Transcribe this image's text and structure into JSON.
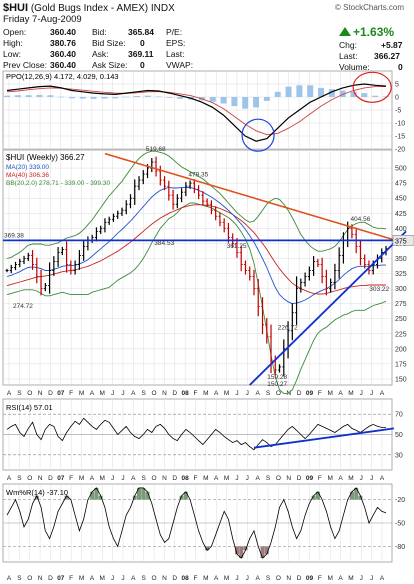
{
  "header": {
    "symbol": "$HUI",
    "name": "(Gold Bugs Index - AMEX) INDX",
    "date": "Friday  7-Aug-2009",
    "watermark": "© StockCharts.com",
    "quotes": [
      {
        "label": "Open:",
        "value": "360.40"
      },
      {
        "label": "High:",
        "value": "380.76"
      },
      {
        "label": "Low:",
        "value": "360.40"
      },
      {
        "label": "Prev Close:",
        "value": "360.40"
      },
      {
        "label": "Bid:",
        "value": "365.84"
      },
      {
        "label": "Bid Size:",
        "value": "0"
      },
      {
        "label": "Ask:",
        "value": "369.11"
      },
      {
        "label": "Ask Size:",
        "value": "0"
      },
      {
        "label": "P/E:",
        "value": ""
      },
      {
        "label": "EPS:",
        "value": ""
      },
      {
        "label": "Last:",
        "value": ""
      },
      {
        "label": "VWAP:",
        "value": ""
      },
      {
        "label": "Chg:",
        "value": "+5.87"
      },
      {
        "label": "Last:",
        "value": "366.27"
      },
      {
        "label": "Volume:",
        "value": "0"
      }
    ],
    "pct_change": "+1.63%"
  },
  "colors": {
    "price_bar": "#000000",
    "ma20": "#2255cc",
    "ma40": "#cc2222",
    "bb": "#3a8a3a",
    "trend_orange": "#e0501a",
    "trend_blue": "#1030d0",
    "highlight_circle_red": "#e02020",
    "highlight_circle_blue": "#2040e0",
    "ppo_hist": "#9fc4ea",
    "willr_fill": "#7a9a7a",
    "willr_fill_low": "#9a7a7a",
    "grid": "#dcdcdc"
  },
  "chart_data": [
    {
      "panel": "PPO",
      "type": "line",
      "legend": [
        "PPO(12,26,9) 4.172, 4.029, 0.143"
      ],
      "ylim": [
        -20,
        10
      ],
      "yticks": [
        "5",
        "0",
        "-5",
        "-10",
        "-15",
        "-20"
      ],
      "ppo": [
        2.5,
        3,
        3.5,
        4,
        4.2,
        3.5,
        2.5,
        2,
        1.5,
        1.2,
        1,
        1.5,
        2,
        2.5,
        2.3,
        1.5,
        0.5,
        -0.5,
        -2,
        -4,
        -7,
        -11,
        -15,
        -17,
        -16,
        -12,
        -8,
        -5,
        -2,
        0,
        2,
        3.5,
        4.5,
        5,
        4.5,
        4.2
      ],
      "signal": [
        2,
        2.3,
        2.8,
        3.2,
        3.5,
        3.4,
        3,
        2.6,
        2.2,
        1.8,
        1.5,
        1.4,
        1.6,
        2,
        2.1,
        1.8,
        1.2,
        0.5,
        -0.7,
        -2.2,
        -4.5,
        -7.5,
        -10.5,
        -13,
        -14.5,
        -14,
        -12,
        -9.5,
        -6.5,
        -3.5,
        -1,
        1,
        2.5,
        3.5,
        4,
        4
      ],
      "annotations": [
        "red circle around recent PPO cross",
        "blue circle around PPO low"
      ]
    },
    {
      "panel": "price",
      "type": "ohlc",
      "title": "$HUI (Weekly) 366.27",
      "legend": [
        "MA(20) 339.00",
        "MA(40) 306.36",
        "BB(20,2.0) 278.71 - 339.00 - 399.30"
      ],
      "ylim": [
        140,
        530
      ],
      "yticks": [
        "500",
        "475",
        "450",
        "425",
        "400",
        "375",
        "350",
        "325",
        "300",
        "275",
        "250",
        "225",
        "200",
        "175",
        "150"
      ],
      "xticks": [
        "A",
        "S",
        "O",
        "N",
        "D",
        "07",
        "F",
        "M",
        "A",
        "M",
        "J",
        "J",
        "A",
        "S",
        "O",
        "N",
        "D",
        "08",
        "F",
        "M",
        "A",
        "M",
        "J",
        "J",
        "A",
        "S",
        "O",
        "N",
        "D",
        "09",
        "F",
        "M",
        "A",
        "M",
        "J",
        "J",
        "A"
      ],
      "labels": [
        "519.68",
        "479.35",
        "404.56",
        "369.38",
        "384.53",
        "361.25",
        "274.72",
        "226.72",
        "159.28",
        "150.27",
        "303.22",
        "375"
      ],
      "close": [
        330,
        335,
        340,
        345,
        350,
        355,
        340,
        320,
        300,
        305,
        330,
        345,
        360,
        365,
        340,
        330,
        340,
        355,
        370,
        380,
        385,
        395,
        400,
        410,
        415,
        420,
        425,
        430,
        440,
        450,
        470,
        480,
        490,
        500,
        510,
        495,
        480,
        470,
        455,
        440,
        450,
        460,
        470,
        475,
        465,
        455,
        445,
        440,
        430,
        420,
        410,
        400,
        385,
        375,
        360,
        340,
        330,
        320,
        300,
        270,
        240,
        220,
        180,
        165,
        170,
        200,
        230,
        260,
        300,
        310,
        320,
        330,
        345,
        340,
        320,
        300,
        310,
        330,
        355,
        380,
        400,
        390,
        370,
        350,
        340,
        330,
        340,
        350,
        360,
        366
      ],
      "ma20": [
        320,
        322,
        325,
        328,
        332,
        335,
        336,
        335,
        333,
        330,
        330,
        332,
        334,
        337,
        338,
        338,
        339,
        341,
        344,
        348,
        354,
        360,
        366,
        372,
        378,
        385,
        392,
        398,
        405,
        412,
        420,
        428,
        436,
        444,
        452,
        458,
        463,
        466,
        468,
        467,
        467,
        468,
        468,
        468,
        466,
        463,
        460,
        456,
        452,
        447,
        442,
        436,
        430,
        423,
        415,
        407,
        398,
        388,
        377,
        364,
        350,
        335,
        318,
        302,
        290,
        283,
        278,
        275,
        276,
        278,
        281,
        285,
        290,
        294,
        297,
        300,
        304,
        309,
        315,
        322,
        328,
        333,
        336,
        337,
        337,
        337,
        338,
        338,
        339,
        339
      ],
      "ma40": [
        305,
        307,
        309,
        311,
        313,
        315,
        317,
        319,
        320,
        321,
        322,
        324,
        326,
        328,
        329,
        330,
        331,
        333,
        335,
        337,
        340,
        343,
        346,
        350,
        354,
        358,
        362,
        367,
        372,
        377,
        383,
        389,
        395,
        401,
        407,
        412,
        417,
        421,
        425,
        428,
        431,
        434,
        436,
        438,
        439,
        439,
        439,
        438,
        437,
        435,
        433,
        430,
        427,
        423,
        418,
        413,
        407,
        400,
        393,
        384,
        375,
        365,
        354,
        343,
        333,
        324,
        316,
        309,
        304,
        300,
        297,
        294,
        292,
        291,
        291,
        292,
        294,
        296,
        298,
        300,
        302,
        303,
        304,
        305,
        305,
        306,
        306,
        306,
        306,
        306
      ],
      "bb_upper": [
        350,
        352,
        356,
        360,
        366,
        372,
        374,
        374,
        374,
        372,
        372,
        374,
        376,
        380,
        384,
        386,
        388,
        392,
        398,
        406,
        414,
        424,
        434,
        444,
        454,
        462,
        470,
        478,
        488,
        498,
        508,
        516,
        522,
        526,
        528,
        528,
        526,
        524,
        520,
        514,
        508,
        502,
        498,
        494,
        490,
        486,
        482,
        476,
        470,
        464,
        458,
        450,
        442,
        434,
        426,
        420,
        414,
        410,
        412,
        420,
        430,
        440,
        446,
        450,
        448,
        440,
        430,
        418,
        404,
        390,
        380,
        372,
        366,
        362,
        362,
        364,
        366,
        370,
        378,
        388,
        398,
        404,
        408,
        410,
        410,
        406,
        402,
        400,
        400,
        399
      ],
      "bb_lower": [
        290,
        292,
        294,
        296,
        298,
        298,
        298,
        296,
        292,
        288,
        288,
        290,
        292,
        294,
        292,
        290,
        290,
        290,
        290,
        290,
        294,
        296,
        298,
        300,
        302,
        308,
        314,
        318,
        322,
        326,
        332,
        340,
        350,
        362,
        376,
        388,
        400,
        408,
        416,
        420,
        426,
        434,
        438,
        442,
        442,
        440,
        438,
        436,
        434,
        430,
        426,
        422,
        418,
        412,
        404,
        394,
        382,
        366,
        342,
        308,
        270,
        230,
        190,
        154,
        132,
        126,
        126,
        132,
        148,
        166,
        182,
        198,
        214,
        226,
        232,
        236,
        242,
        248,
        252,
        256,
        258,
        262,
        264,
        264,
        264,
        268,
        272,
        274,
        276,
        279
      ],
      "trendlines": [
        "orange falling resistance from 519.68 peak",
        "blue horizontal line at 369.38",
        "blue rising support from 150.27 low"
      ]
    },
    {
      "panel": "RSI",
      "type": "line",
      "legend": [
        "RSI(14) 57.01"
      ],
      "ylim": [
        15,
        85
      ],
      "yticks": [
        "70",
        "50",
        "30"
      ],
      "values": [
        55,
        58,
        60,
        52,
        48,
        56,
        62,
        50,
        45,
        55,
        60,
        58,
        48,
        44,
        52,
        58,
        63,
        60,
        66,
        62,
        58,
        55,
        60,
        64,
        62,
        56,
        50,
        54,
        58,
        52,
        48,
        46,
        50,
        55,
        52,
        58,
        60,
        56,
        50,
        46,
        44,
        50,
        55,
        52,
        48,
        44,
        40,
        45,
        50,
        55,
        52,
        48,
        45,
        42,
        44,
        40,
        42,
        38,
        35,
        40,
        45,
        42,
        38,
        40,
        45,
        50,
        55,
        58,
        54,
        50,
        46,
        50,
        55,
        60,
        58,
        56,
        54,
        52,
        55,
        58,
        60,
        56,
        54,
        52,
        55,
        58,
        60,
        58,
        57,
        57
      ],
      "annotations": [
        "blue rising trendline under RSI lows"
      ]
    },
    {
      "panel": "Wm%R",
      "type": "line",
      "legend": [
        "Wm%R(14) -37.10"
      ],
      "ylim": [
        -100,
        0
      ],
      "yticks": [
        "-20",
        "-50",
        "-80"
      ],
      "values": [
        -40,
        -30,
        -20,
        -35,
        -55,
        -45,
        -25,
        -15,
        -30,
        -60,
        -70,
        -55,
        -35,
        -25,
        -15,
        -20,
        -40,
        -60,
        -45,
        -20,
        -10,
        -5,
        -15,
        -30,
        -55,
        -70,
        -80,
        -60,
        -40,
        -30,
        -15,
        -5,
        -5,
        -10,
        -25,
        -45,
        -65,
        -75,
        -70,
        -50,
        -30,
        -15,
        -10,
        -20,
        -40,
        -60,
        -75,
        -85,
        -80,
        -65,
        -50,
        -35,
        -45,
        -70,
        -90,
        -95,
        -85,
        -70,
        -60,
        -80,
        -95,
        -90,
        -75,
        -55,
        -30,
        -20,
        -35,
        -55,
        -70,
        -60,
        -40,
        -25,
        -15,
        -10,
        -20,
        -35,
        -55,
        -70,
        -60,
        -40,
        -20,
        -10,
        -5,
        -15,
        -30,
        -50,
        -40,
        -30,
        -35,
        -37
      ]
    }
  ]
}
